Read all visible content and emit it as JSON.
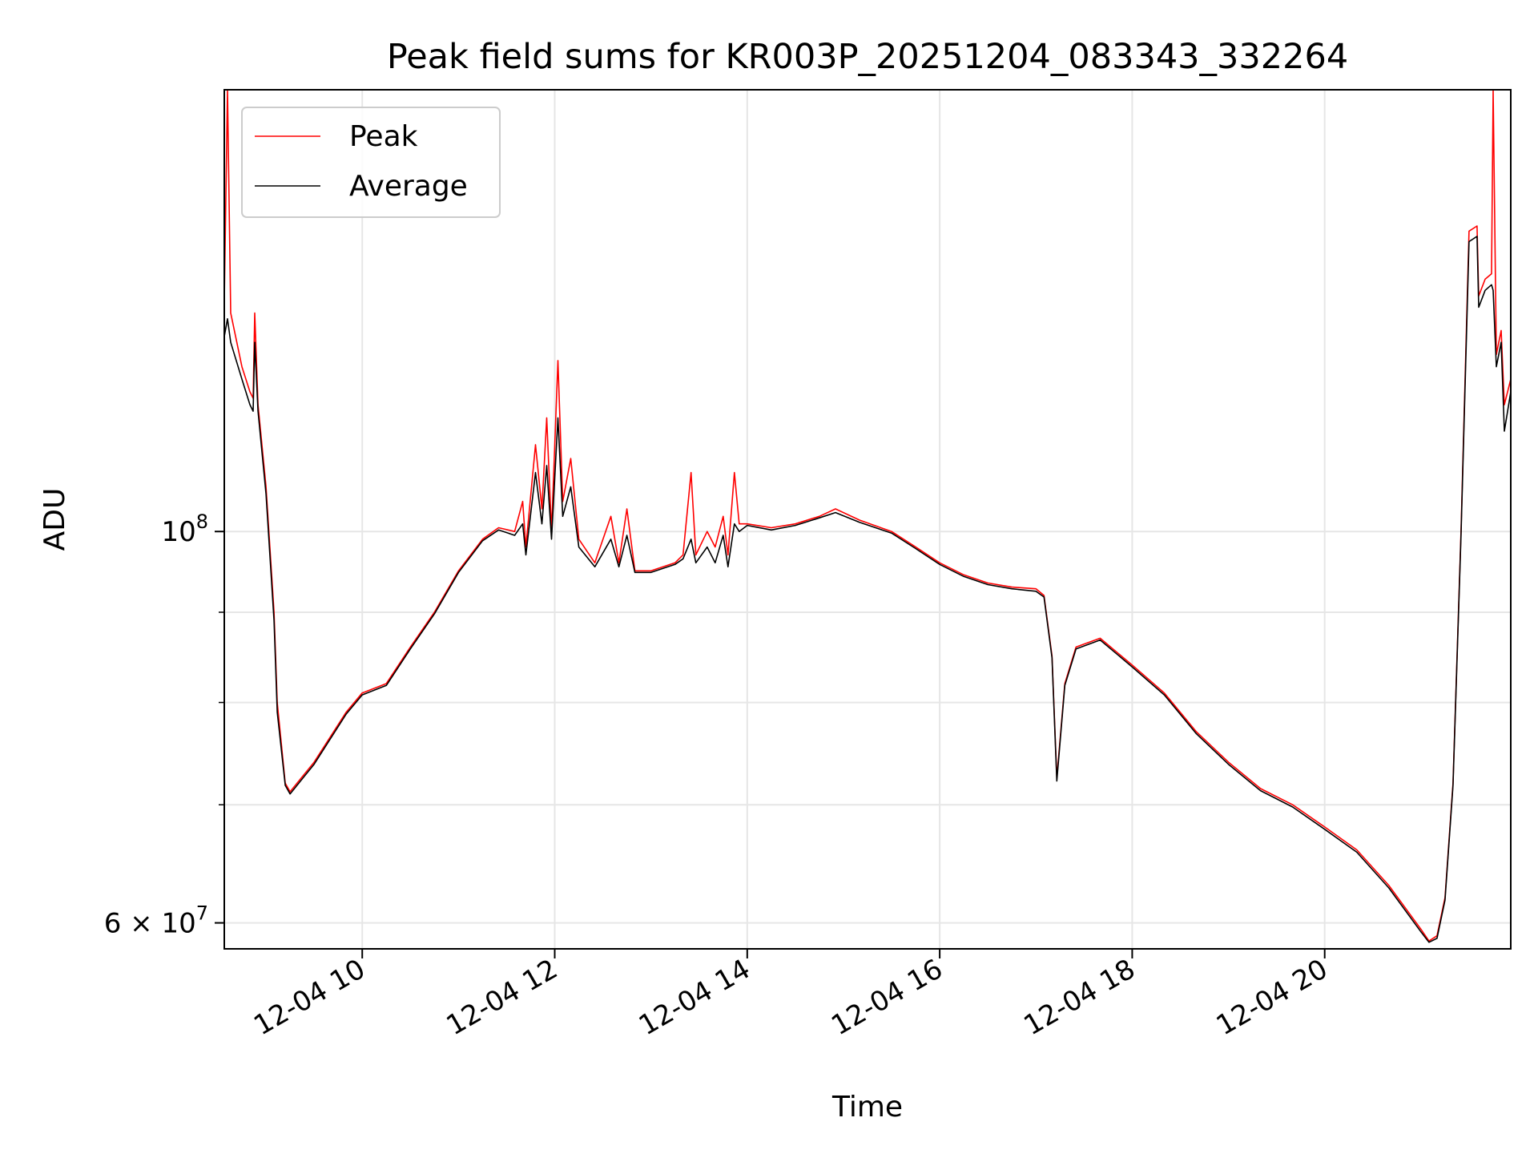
{
  "chart_data": {
    "type": "line",
    "title": "Peak field sums for KR003P_20251204_083343_332264",
    "xlabel": "Time",
    "ylabel": "ADU",
    "yscale": "log",
    "xlim": [
      "2025-12-04T08:34",
      "2025-12-04T21:56"
    ],
    "ylim": [
      58000000,
      178000000
    ],
    "grid": true,
    "legend": "top-left",
    "x_ticks": [
      {
        "value": "2025-12-04T10:00",
        "label": "12-04 10"
      },
      {
        "value": "2025-12-04T12:00",
        "label": "12-04 12"
      },
      {
        "value": "2025-12-04T14:00",
        "label": "12-04 14"
      },
      {
        "value": "2025-12-04T16:00",
        "label": "12-04 16"
      },
      {
        "value": "2025-12-04T18:00",
        "label": "12-04 18"
      },
      {
        "value": "2025-12-04T20:00",
        "label": "12-04 20"
      }
    ],
    "y_ticks": [
      {
        "value": 100000000,
        "base": "10",
        "exp": "8",
        "label": "10^8"
      },
      {
        "value": 60000000,
        "mantissa": "6 × ",
        "base": "10",
        "exp": "7",
        "label": "6 × 10^7"
      }
    ],
    "y_minor_ticks": [
      70000000,
      80000000,
      90000000
    ],
    "series": [
      {
        "name": "Peak",
        "color": "#ff0000",
        "points": [
          [
            "2025-12-04T08:34",
            135000000
          ],
          [
            "2025-12-04T08:36",
            178000000
          ],
          [
            "2025-12-04T08:38",
            133000000
          ],
          [
            "2025-12-04T08:45",
            124000000
          ],
          [
            "2025-12-04T08:50",
            120000000
          ],
          [
            "2025-12-04T08:52",
            119000000
          ],
          [
            "2025-12-04T08:53",
            133000000
          ],
          [
            "2025-12-04T08:55",
            118000000
          ],
          [
            "2025-12-04T09:00",
            106000000
          ],
          [
            "2025-12-04T09:05",
            90000000
          ],
          [
            "2025-12-04T09:07",
            80000000
          ],
          [
            "2025-12-04T09:12",
            72000000
          ],
          [
            "2025-12-04T09:15",
            71200000
          ],
          [
            "2025-12-04T09:30",
            74000000
          ],
          [
            "2025-12-04T09:50",
            79000000
          ],
          [
            "2025-12-04T10:00",
            81000000
          ],
          [
            "2025-12-04T10:15",
            82000000
          ],
          [
            "2025-12-04T10:30",
            86000000
          ],
          [
            "2025-12-04T10:45",
            90000000
          ],
          [
            "2025-12-04T11:00",
            95000000
          ],
          [
            "2025-12-04T11:15",
            99000000
          ],
          [
            "2025-12-04T11:25",
            100500000
          ],
          [
            "2025-12-04T11:35",
            100000000
          ],
          [
            "2025-12-04T11:40",
            104000000
          ],
          [
            "2025-12-04T11:42",
            98000000
          ],
          [
            "2025-12-04T11:48",
            112000000
          ],
          [
            "2025-12-04T11:52",
            103000000
          ],
          [
            "2025-12-04T11:55",
            116000000
          ],
          [
            "2025-12-04T11:58",
            100000000
          ],
          [
            "2025-12-04T12:02",
            125000000
          ],
          [
            "2025-12-04T12:05",
            104000000
          ],
          [
            "2025-12-04T12:10",
            110000000
          ],
          [
            "2025-12-04T12:15",
            99000000
          ],
          [
            "2025-12-04T12:25",
            96000000
          ],
          [
            "2025-12-04T12:35",
            102000000
          ],
          [
            "2025-12-04T12:40",
            96000000
          ],
          [
            "2025-12-04T12:45",
            103000000
          ],
          [
            "2025-12-04T12:50",
            95000000
          ],
          [
            "2025-12-04T13:00",
            95000000
          ],
          [
            "2025-12-04T13:15",
            96000000
          ],
          [
            "2025-12-04T13:20",
            97000000
          ],
          [
            "2025-12-04T13:25",
            108000000
          ],
          [
            "2025-12-04T13:28",
            97000000
          ],
          [
            "2025-12-04T13:35",
            100000000
          ],
          [
            "2025-12-04T13:40",
            98000000
          ],
          [
            "2025-12-04T13:45",
            102000000
          ],
          [
            "2025-12-04T13:48",
            97000000
          ],
          [
            "2025-12-04T13:52",
            108000000
          ],
          [
            "2025-12-04T13:55",
            101000000
          ],
          [
            "2025-12-04T14:00",
            101000000
          ],
          [
            "2025-12-04T14:15",
            100500000
          ],
          [
            "2025-12-04T14:30",
            101000000
          ],
          [
            "2025-12-04T14:45",
            102000000
          ],
          [
            "2025-12-04T14:55",
            103000000
          ],
          [
            "2025-12-04T15:10",
            101500000
          ],
          [
            "2025-12-04T15:30",
            100000000
          ],
          [
            "2025-12-04T15:45",
            98000000
          ],
          [
            "2025-12-04T16:00",
            96000000
          ],
          [
            "2025-12-04T16:15",
            94500000
          ],
          [
            "2025-12-04T16:30",
            93500000
          ],
          [
            "2025-12-04T16:45",
            93000000
          ],
          [
            "2025-12-04T17:00",
            92800000
          ],
          [
            "2025-12-04T17:05",
            92000000
          ],
          [
            "2025-12-04T17:10",
            85000000
          ],
          [
            "2025-12-04T17:13",
            72500000
          ],
          [
            "2025-12-04T17:18",
            82000000
          ],
          [
            "2025-12-04T17:25",
            86000000
          ],
          [
            "2025-12-04T17:40",
            87000000
          ],
          [
            "2025-12-04T18:00",
            84000000
          ],
          [
            "2025-12-04T18:20",
            81000000
          ],
          [
            "2025-12-04T18:40",
            77000000
          ],
          [
            "2025-12-04T19:00",
            74000000
          ],
          [
            "2025-12-04T19:20",
            71500000
          ],
          [
            "2025-12-04T19:40",
            70000000
          ],
          [
            "2025-12-04T20:00",
            68000000
          ],
          [
            "2025-12-04T20:20",
            66000000
          ],
          [
            "2025-12-04T20:40",
            63000000
          ],
          [
            "2025-12-04T21:00",
            59500000
          ],
          [
            "2025-12-04T21:05",
            58600000
          ],
          [
            "2025-12-04T21:10",
            59000000
          ],
          [
            "2025-12-04T21:15",
            62000000
          ],
          [
            "2025-12-04T21:20",
            72000000
          ],
          [
            "2025-12-04T21:25",
            100000000
          ],
          [
            "2025-12-04T21:30",
            148000000
          ],
          [
            "2025-12-04T21:35",
            149000000
          ],
          [
            "2025-12-04T21:36",
            136000000
          ],
          [
            "2025-12-04T21:40",
            139000000
          ],
          [
            "2025-12-04T21:44",
            140000000
          ],
          [
            "2025-12-04T21:45",
            178000000
          ],
          [
            "2025-12-04T21:47",
            126000000
          ],
          [
            "2025-12-04T21:50",
            130000000
          ],
          [
            "2025-12-04T21:52",
            118000000
          ],
          [
            "2025-12-04T21:56",
            122000000
          ]
        ]
      },
      {
        "name": "Average",
        "color": "#000000",
        "points": [
          [
            "2025-12-04T08:34",
            129000000
          ],
          [
            "2025-12-04T08:36",
            132000000
          ],
          [
            "2025-12-04T08:38",
            128000000
          ],
          [
            "2025-12-04T08:45",
            122000000
          ],
          [
            "2025-12-04T08:50",
            118000000
          ],
          [
            "2025-12-04T08:52",
            117000000
          ],
          [
            "2025-12-04T08:53",
            128000000
          ],
          [
            "2025-12-04T08:55",
            117000000
          ],
          [
            "2025-12-04T09:00",
            105000000
          ],
          [
            "2025-12-04T09:05",
            89000000
          ],
          [
            "2025-12-04T09:07",
            79000000
          ],
          [
            "2025-12-04T09:12",
            71800000
          ],
          [
            "2025-12-04T09:15",
            71000000
          ],
          [
            "2025-12-04T09:30",
            73800000
          ],
          [
            "2025-12-04T09:50",
            78800000
          ],
          [
            "2025-12-04T10:00",
            80800000
          ],
          [
            "2025-12-04T10:15",
            81800000
          ],
          [
            "2025-12-04T10:30",
            85800000
          ],
          [
            "2025-12-04T10:45",
            89800000
          ],
          [
            "2025-12-04T11:00",
            94800000
          ],
          [
            "2025-12-04T11:15",
            98800000
          ],
          [
            "2025-12-04T11:25",
            100200000
          ],
          [
            "2025-12-04T11:35",
            99500000
          ],
          [
            "2025-12-04T11:40",
            101000000
          ],
          [
            "2025-12-04T11:42",
            97000000
          ],
          [
            "2025-12-04T11:48",
            108000000
          ],
          [
            "2025-12-04T11:52",
            101000000
          ],
          [
            "2025-12-04T11:55",
            109000000
          ],
          [
            "2025-12-04T11:58",
            99000000
          ],
          [
            "2025-12-04T12:02",
            116000000
          ],
          [
            "2025-12-04T12:05",
            102000000
          ],
          [
            "2025-12-04T12:10",
            106000000
          ],
          [
            "2025-12-04T12:15",
            98000000
          ],
          [
            "2025-12-04T12:25",
            95500000
          ],
          [
            "2025-12-04T12:35",
            99000000
          ],
          [
            "2025-12-04T12:40",
            95500000
          ],
          [
            "2025-12-04T12:45",
            99500000
          ],
          [
            "2025-12-04T12:50",
            94800000
          ],
          [
            "2025-12-04T13:00",
            94800000
          ],
          [
            "2025-12-04T13:15",
            95800000
          ],
          [
            "2025-12-04T13:20",
            96500000
          ],
          [
            "2025-12-04T13:25",
            99000000
          ],
          [
            "2025-12-04T13:28",
            96000000
          ],
          [
            "2025-12-04T13:35",
            98000000
          ],
          [
            "2025-12-04T13:40",
            96000000
          ],
          [
            "2025-12-04T13:45",
            99500000
          ],
          [
            "2025-12-04T13:48",
            95500000
          ],
          [
            "2025-12-04T13:52",
            101000000
          ],
          [
            "2025-12-04T13:55",
            100000000
          ],
          [
            "2025-12-04T14:00",
            100800000
          ],
          [
            "2025-12-04T14:15",
            100200000
          ],
          [
            "2025-12-04T14:30",
            100800000
          ],
          [
            "2025-12-04T14:45",
            101800000
          ],
          [
            "2025-12-04T14:55",
            102500000
          ],
          [
            "2025-12-04T15:10",
            101200000
          ],
          [
            "2025-12-04T15:30",
            99800000
          ],
          [
            "2025-12-04T15:45",
            97800000
          ],
          [
            "2025-12-04T16:00",
            95800000
          ],
          [
            "2025-12-04T16:15",
            94300000
          ],
          [
            "2025-12-04T16:30",
            93300000
          ],
          [
            "2025-12-04T16:45",
            92800000
          ],
          [
            "2025-12-04T17:00",
            92500000
          ],
          [
            "2025-12-04T17:05",
            91800000
          ],
          [
            "2025-12-04T17:10",
            84800000
          ],
          [
            "2025-12-04T17:13",
            72200000
          ],
          [
            "2025-12-04T17:18",
            81800000
          ],
          [
            "2025-12-04T17:25",
            85800000
          ],
          [
            "2025-12-04T17:40",
            86800000
          ],
          [
            "2025-12-04T18:00",
            83800000
          ],
          [
            "2025-12-04T18:20",
            80800000
          ],
          [
            "2025-12-04T18:40",
            76800000
          ],
          [
            "2025-12-04T19:00",
            73800000
          ],
          [
            "2025-12-04T19:20",
            71300000
          ],
          [
            "2025-12-04T19:40",
            69800000
          ],
          [
            "2025-12-04T20:00",
            67800000
          ],
          [
            "2025-12-04T20:20",
            65800000
          ],
          [
            "2025-12-04T20:40",
            62800000
          ],
          [
            "2025-12-04T21:00",
            59300000
          ],
          [
            "2025-12-04T21:05",
            58500000
          ],
          [
            "2025-12-04T21:10",
            58800000
          ],
          [
            "2025-12-04T21:15",
            61800000
          ],
          [
            "2025-12-04T21:20",
            71800000
          ],
          [
            "2025-12-04T21:25",
            99500000
          ],
          [
            "2025-12-04T21:30",
            146000000
          ],
          [
            "2025-12-04T21:35",
            147000000
          ],
          [
            "2025-12-04T21:36",
            134000000
          ],
          [
            "2025-12-04T21:40",
            137000000
          ],
          [
            "2025-12-04T21:44",
            138000000
          ],
          [
            "2025-12-04T21:45",
            137000000
          ],
          [
            "2025-12-04T21:47",
            124000000
          ],
          [
            "2025-12-04T21:50",
            128000000
          ],
          [
            "2025-12-04T21:52",
            114000000
          ],
          [
            "2025-12-04T21:56",
            120000000
          ]
        ]
      }
    ]
  }
}
